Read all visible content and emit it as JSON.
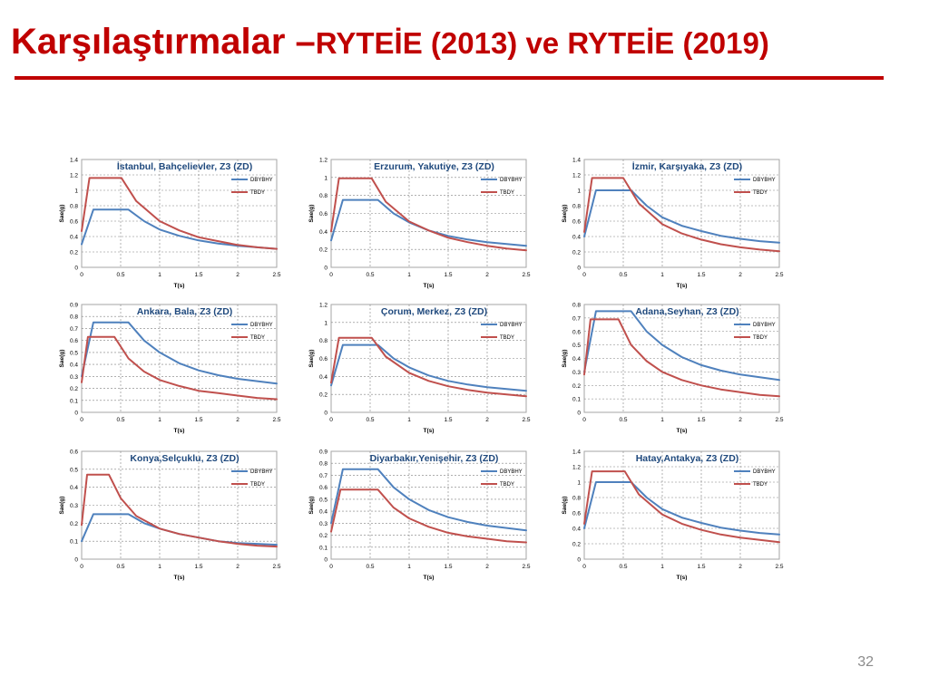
{
  "slide": {
    "title_main": "Karşılaştırmalar –",
    "title_sub": "RYTEİE (2013) ve RYTEİE (2019)",
    "page_number": "32",
    "colors": {
      "title": "#c00000",
      "dbybhy": "#4f81bd",
      "tbdy": "#c0504d"
    }
  },
  "chart_data": [
    {
      "type": "line",
      "title": "İstanbul, Bahçelievler, Z3 (ZD)",
      "xlabel": "T(s)",
      "ylabel": "Sae(g)",
      "xlim": [
        0,
        2.5
      ],
      "ylim": [
        0,
        1.4
      ],
      "x_ticks": [
        0,
        0.5,
        1,
        1.5,
        2,
        2.5
      ],
      "y_ticks": [
        0,
        0.2,
        0.4,
        0.6,
        0.8,
        1,
        1.2,
        1.4
      ],
      "x_tick_labels": [
        "0",
        "0.5",
        "1",
        "1.5",
        "2",
        "2.5"
      ],
      "y_tick_labels": [
        "0",
        "0.2",
        "0.4",
        "0.6",
        "0.8",
        "1",
        "1.2",
        "1.4"
      ],
      "grid": true,
      "legend_position": "top-right",
      "series": [
        {
          "name": "DBYBHY",
          "color": "#4f81bd",
          "x": [
            0,
            0.15,
            0.6,
            0.8,
            1,
            1.25,
            1.5,
            1.75,
            2,
            2.25,
            2.5
          ],
          "y": [
            0.3,
            0.75,
            0.75,
            0.6,
            0.49,
            0.41,
            0.35,
            0.31,
            0.28,
            0.26,
            0.24
          ]
        },
        {
          "name": "TBDY",
          "color": "#c0504d",
          "x": [
            0,
            0.1,
            0.51,
            0.7,
            1,
            1.25,
            1.5,
            1.75,
            2,
            2.25,
            2.5
          ],
          "y": [
            0.47,
            1.16,
            1.16,
            0.86,
            0.6,
            0.48,
            0.39,
            0.34,
            0.29,
            0.26,
            0.24
          ]
        }
      ]
    },
    {
      "type": "line",
      "title": "Erzurum, Yakutiye, Z3 (ZD)",
      "xlabel": "T(s)",
      "ylabel": "Sae(g)",
      "xlim": [
        0,
        2.5
      ],
      "ylim": [
        0,
        1.2
      ],
      "x_ticks": [
        0,
        0.5,
        1,
        1.5,
        2,
        2.5
      ],
      "y_ticks": [
        0,
        0.2,
        0.4,
        0.6,
        0.8,
        1,
        1.2
      ],
      "x_tick_labels": [
        "0",
        "0.5",
        "1",
        "1.5",
        "2",
        "2.5"
      ],
      "y_tick_labels": [
        "0",
        "0.2",
        "0.4",
        "0.6",
        "0.8",
        "1",
        "1.2"
      ],
      "grid": true,
      "legend_position": "top-right",
      "series": [
        {
          "name": "DBYBHY",
          "color": "#4f81bd",
          "x": [
            0,
            0.15,
            0.6,
            0.8,
            1,
            1.25,
            1.5,
            1.75,
            2,
            2.25,
            2.5
          ],
          "y": [
            0.3,
            0.75,
            0.75,
            0.6,
            0.5,
            0.41,
            0.35,
            0.31,
            0.28,
            0.26,
            0.24
          ]
        },
        {
          "name": "TBDY",
          "color": "#c0504d",
          "x": [
            0,
            0.1,
            0.52,
            0.7,
            1,
            1.25,
            1.5,
            1.75,
            2,
            2.25,
            2.5
          ],
          "y": [
            0.4,
            0.99,
            0.99,
            0.73,
            0.51,
            0.41,
            0.33,
            0.28,
            0.24,
            0.21,
            0.19
          ]
        }
      ]
    },
    {
      "type": "line",
      "title": "İzmir, Karşıyaka, Z3 (ZD)",
      "xlabel": "T(s)",
      "ylabel": "Sae(g)",
      "xlim": [
        0,
        2.5
      ],
      "ylim": [
        0,
        1.4
      ],
      "x_ticks": [
        0,
        0.5,
        1,
        1.5,
        2,
        2.5
      ],
      "y_ticks": [
        0,
        0.2,
        0.4,
        0.6,
        0.8,
        1,
        1.2,
        1.4
      ],
      "x_tick_labels": [
        "0",
        "0.5",
        "1",
        "1.5",
        "2",
        "2.5"
      ],
      "y_tick_labels": [
        "0",
        "0.2",
        "0.4",
        "0.6",
        "0.8",
        "1",
        "1.2",
        "1.4"
      ],
      "grid": true,
      "legend_position": "top-right",
      "series": [
        {
          "name": "DBYBHY",
          "color": "#4f81bd",
          "x": [
            0,
            0.15,
            0.6,
            0.8,
            1,
            1.25,
            1.5,
            1.75,
            2,
            2.25,
            2.5
          ],
          "y": [
            0.4,
            1.0,
            1.0,
            0.8,
            0.65,
            0.54,
            0.47,
            0.41,
            0.37,
            0.34,
            0.32
          ]
        },
        {
          "name": "TBDY",
          "color": "#c0504d",
          "x": [
            0,
            0.1,
            0.5,
            0.7,
            1,
            1.25,
            1.5,
            1.75,
            2,
            2.25,
            2.5
          ],
          "y": [
            0.46,
            1.16,
            1.16,
            0.83,
            0.56,
            0.44,
            0.36,
            0.3,
            0.26,
            0.23,
            0.21
          ]
        }
      ]
    },
    {
      "type": "line",
      "title": "Ankara, Bala, Z3 (ZD)",
      "xlabel": "T(s)",
      "ylabel": "Sae(g)",
      "xlim": [
        0,
        2.5
      ],
      "ylim": [
        0,
        0.9
      ],
      "x_ticks": [
        0,
        0.5,
        1,
        1.5,
        2,
        2.5
      ],
      "y_ticks": [
        0,
        0.1,
        0.2,
        0.3,
        0.4,
        0.5,
        0.6,
        0.7,
        0.8,
        0.9
      ],
      "x_tick_labels": [
        "0",
        "0.5",
        "1",
        "1.5",
        "2",
        "2.5"
      ],
      "y_tick_labels": [
        "0",
        "0.1",
        "0.2",
        "0.3",
        "0.4",
        "0.5",
        "0.6",
        "0.7",
        "0.8",
        "0.9"
      ],
      "grid": true,
      "legend_position": "top-right",
      "series": [
        {
          "name": "DBYBHY",
          "color": "#4f81bd",
          "x": [
            0,
            0.15,
            0.6,
            0.8,
            1,
            1.25,
            1.5,
            1.75,
            2,
            2.25,
            2.5
          ],
          "y": [
            0.3,
            0.75,
            0.75,
            0.6,
            0.5,
            0.41,
            0.35,
            0.31,
            0.28,
            0.26,
            0.24
          ]
        },
        {
          "name": "TBDY",
          "color": "#c0504d",
          "x": [
            0,
            0.08,
            0.42,
            0.6,
            0.8,
            1,
            1.25,
            1.5,
            1.75,
            2,
            2.25,
            2.5
          ],
          "y": [
            0.25,
            0.63,
            0.63,
            0.45,
            0.34,
            0.27,
            0.22,
            0.18,
            0.16,
            0.14,
            0.12,
            0.11
          ]
        }
      ]
    },
    {
      "type": "line",
      "title": "Çorum, Merkez, Z3 (ZD)",
      "xlabel": "T(s)",
      "ylabel": "Sae(g)",
      "xlim": [
        0,
        2.5
      ],
      "ylim": [
        0,
        1.2
      ],
      "x_ticks": [
        0,
        0.5,
        1,
        1.5,
        2,
        2.5
      ],
      "y_ticks": [
        0,
        0.2,
        0.4,
        0.6,
        0.8,
        1,
        1.2
      ],
      "x_tick_labels": [
        "0",
        "0.5",
        "1",
        "1.5",
        "2",
        "2.5"
      ],
      "y_tick_labels": [
        "0",
        "0.2",
        "0.4",
        "0.6",
        "0.8",
        "1",
        "1.2"
      ],
      "grid": true,
      "legend_position": "top-right",
      "series": [
        {
          "name": "DBYBHY",
          "color": "#4f81bd",
          "x": [
            0,
            0.15,
            0.6,
            0.8,
            1,
            1.25,
            1.5,
            1.75,
            2,
            2.25,
            2.5
          ],
          "y": [
            0.3,
            0.75,
            0.75,
            0.6,
            0.5,
            0.41,
            0.35,
            0.31,
            0.28,
            0.26,
            0.24
          ]
        },
        {
          "name": "TBDY",
          "color": "#c0504d",
          "x": [
            0,
            0.1,
            0.52,
            0.7,
            1,
            1.25,
            1.5,
            1.75,
            2,
            2.25,
            2.5
          ],
          "y": [
            0.33,
            0.83,
            0.83,
            0.62,
            0.44,
            0.35,
            0.29,
            0.25,
            0.22,
            0.2,
            0.18
          ]
        }
      ]
    },
    {
      "type": "line",
      "title": "Adana,Seyhan, Z3 (ZD)",
      "xlabel": "T(s)",
      "ylabel": "Sae(g)",
      "xlim": [
        0,
        2.5
      ],
      "ylim": [
        0,
        0.8
      ],
      "x_ticks": [
        0,
        0.5,
        1,
        1.5,
        2,
        2.5
      ],
      "y_ticks": [
        0,
        0.1,
        0.2,
        0.3,
        0.4,
        0.5,
        0.6,
        0.7,
        0.8
      ],
      "x_tick_labels": [
        "0",
        "0.5",
        "1",
        "1.5",
        "2",
        "2.5"
      ],
      "y_tick_labels": [
        "0",
        "0.1",
        "0.2",
        "0.3",
        "0.4",
        "0.5",
        "0.6",
        "0.7",
        "0.8"
      ],
      "grid": true,
      "legend_position": "top-right",
      "series": [
        {
          "name": "DBYBHY",
          "color": "#4f81bd",
          "x": [
            0,
            0.15,
            0.6,
            0.8,
            1,
            1.25,
            1.5,
            1.75,
            2,
            2.25,
            2.5
          ],
          "y": [
            0.3,
            0.75,
            0.75,
            0.6,
            0.5,
            0.41,
            0.35,
            0.31,
            0.28,
            0.26,
            0.24
          ]
        },
        {
          "name": "TBDY",
          "color": "#c0504d",
          "x": [
            0,
            0.08,
            0.44,
            0.6,
            0.8,
            1,
            1.25,
            1.5,
            1.75,
            2,
            2.25,
            2.5
          ],
          "y": [
            0.28,
            0.69,
            0.69,
            0.5,
            0.38,
            0.3,
            0.24,
            0.2,
            0.17,
            0.15,
            0.13,
            0.12
          ]
        }
      ]
    },
    {
      "type": "line",
      "title": "Konya,Selçuklu, Z3 (ZD)",
      "xlabel": "T(s)",
      "ylabel": "Sae(g)",
      "xlim": [
        0,
        2.5
      ],
      "ylim": [
        0,
        0.6
      ],
      "x_ticks": [
        0,
        0.5,
        1,
        1.5,
        2,
        2.5
      ],
      "y_ticks": [
        0,
        0.1,
        0.2,
        0.3,
        0.4,
        0.5,
        0.6
      ],
      "x_tick_labels": [
        "0",
        "0.5",
        "1",
        "1.5",
        "2",
        "2.5"
      ],
      "y_tick_labels": [
        "0",
        "0.1",
        "0.2",
        "0.3",
        "0.4",
        "0.5",
        "0.6"
      ],
      "grid": true,
      "legend_position": "top-right",
      "series": [
        {
          "name": "DBYBHY",
          "color": "#4f81bd",
          "x": [
            0,
            0.15,
            0.6,
            0.8,
            1,
            1.25,
            1.5,
            1.75,
            2,
            2.25,
            2.5
          ],
          "y": [
            0.1,
            0.25,
            0.25,
            0.2,
            0.17,
            0.14,
            0.12,
            0.1,
            0.09,
            0.085,
            0.08
          ]
        },
        {
          "name": "TBDY",
          "color": "#c0504d",
          "x": [
            0,
            0.07,
            0.35,
            0.5,
            0.7,
            1,
            1.25,
            1.5,
            1.75,
            2,
            2.25,
            2.5
          ],
          "y": [
            0.19,
            0.47,
            0.47,
            0.34,
            0.24,
            0.17,
            0.14,
            0.12,
            0.1,
            0.085,
            0.075,
            0.07
          ]
        }
      ]
    },
    {
      "type": "line",
      "title": "Diyarbakır,Yenişehir, Z3 (ZD)",
      "xlabel": "T(s)",
      "ylabel": "Sae(g)",
      "xlim": [
        0,
        2.5
      ],
      "ylim": [
        0,
        0.9
      ],
      "x_ticks": [
        0,
        0.5,
        1,
        1.5,
        2,
        2.5
      ],
      "y_ticks": [
        0,
        0.1,
        0.2,
        0.3,
        0.4,
        0.5,
        0.6,
        0.7,
        0.8,
        0.9
      ],
      "x_tick_labels": [
        "0",
        "0.5",
        "1",
        "1.5",
        "2",
        "2.5"
      ],
      "y_tick_labels": [
        "0",
        "0.1",
        "0.2",
        "0.3",
        "0.4",
        "0.5",
        "0.6",
        "0.7",
        "0.8",
        "0.9"
      ],
      "grid": true,
      "legend_position": "top-right",
      "series": [
        {
          "name": "DBYBHY",
          "color": "#4f81bd",
          "x": [
            0,
            0.15,
            0.6,
            0.8,
            1,
            1.25,
            1.5,
            1.75,
            2,
            2.25,
            2.5
          ],
          "y": [
            0.3,
            0.75,
            0.75,
            0.6,
            0.5,
            0.41,
            0.35,
            0.31,
            0.28,
            0.26,
            0.24
          ]
        },
        {
          "name": "TBDY",
          "color": "#c0504d",
          "x": [
            0,
            0.12,
            0.6,
            0.8,
            1,
            1.25,
            1.5,
            1.75,
            2,
            2.25,
            2.5
          ],
          "y": [
            0.23,
            0.58,
            0.58,
            0.43,
            0.34,
            0.27,
            0.22,
            0.19,
            0.17,
            0.15,
            0.14
          ]
        }
      ]
    },
    {
      "type": "line",
      "title": "Hatay,Antakya, Z3 (ZD)",
      "xlabel": "T(s)",
      "ylabel": "Sae(g)",
      "xlim": [
        0,
        2.5
      ],
      "ylim": [
        0,
        1.4
      ],
      "x_ticks": [
        0,
        0.5,
        1,
        1.5,
        2,
        2.5
      ],
      "y_ticks": [
        0,
        0.2,
        0.4,
        0.6,
        0.8,
        1,
        1.2,
        1.4
      ],
      "x_tick_labels": [
        "0",
        "0.5",
        "1",
        "1.5",
        "2",
        "2.5"
      ],
      "y_tick_labels": [
        "0",
        "0.2",
        "0.4",
        "0.6",
        "0.8",
        "1",
        "1.2",
        "1.4"
      ],
      "grid": true,
      "legend_position": "top-right",
      "series": [
        {
          "name": "DBYBHY",
          "color": "#4f81bd",
          "x": [
            0,
            0.15,
            0.6,
            0.8,
            1,
            1.25,
            1.5,
            1.75,
            2,
            2.25,
            2.5
          ],
          "y": [
            0.4,
            1.0,
            1.0,
            0.8,
            0.65,
            0.54,
            0.47,
            0.41,
            0.37,
            0.34,
            0.32
          ]
        },
        {
          "name": "TBDY",
          "color": "#c0504d",
          "x": [
            0,
            0.1,
            0.52,
            0.7,
            1,
            1.25,
            1.5,
            1.75,
            2,
            2.25,
            2.5
          ],
          "y": [
            0.46,
            1.14,
            1.14,
            0.84,
            0.58,
            0.46,
            0.38,
            0.32,
            0.28,
            0.25,
            0.22
          ]
        }
      ]
    }
  ]
}
